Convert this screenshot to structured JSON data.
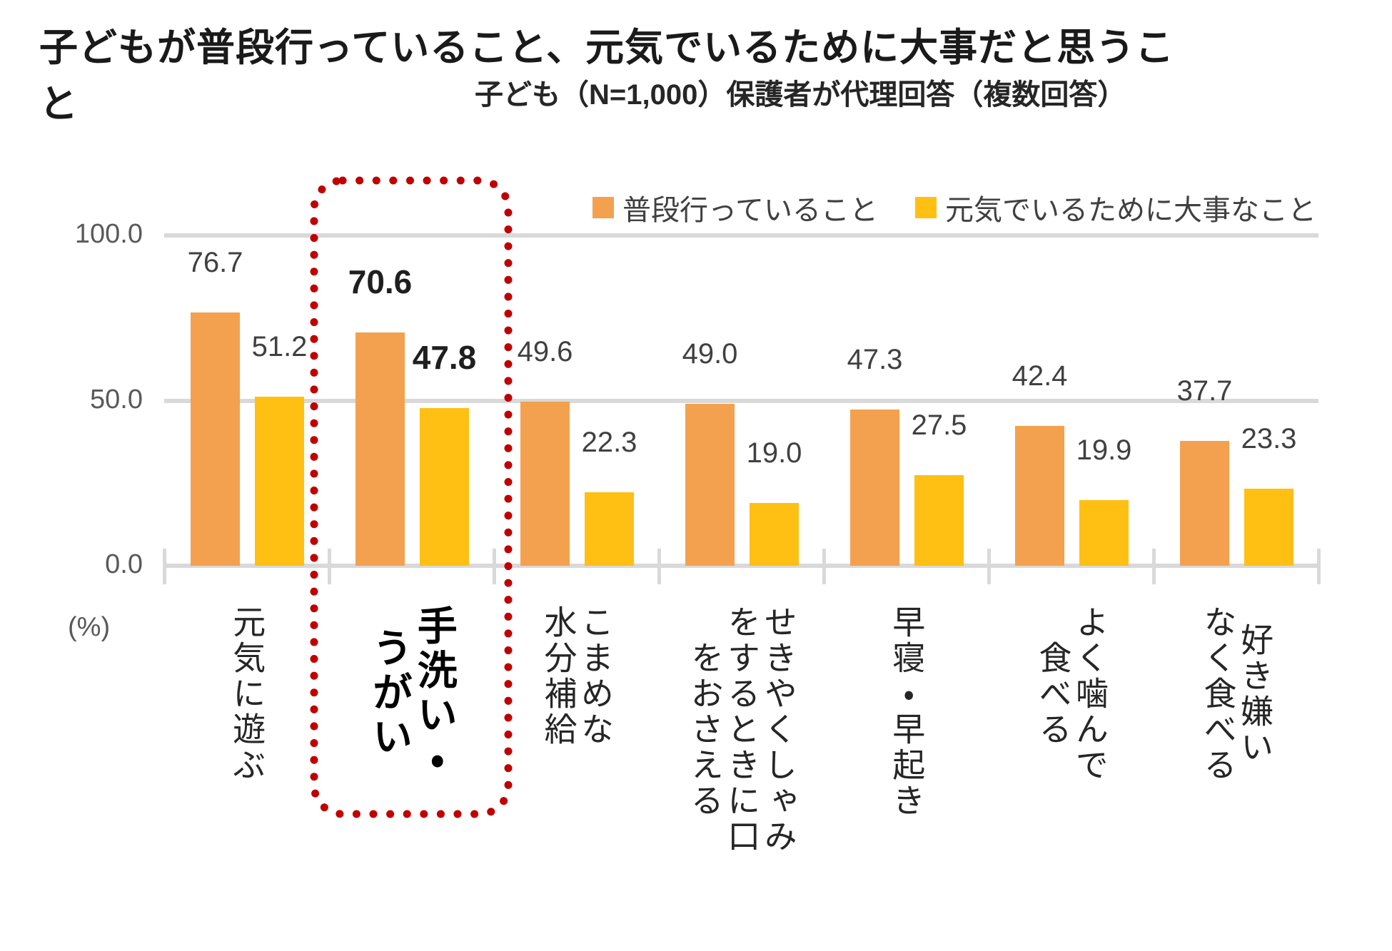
{
  "title": "子どもが普段行っていること、元気でいるために大事だと思うこと",
  "subtitle": "子ども（N=1,000）保護者が代理回答（複数回答）",
  "legend": {
    "items": [
      {
        "label": "普段行っていること",
        "color": "#F4A14F"
      },
      {
        "label": "元気でいるために大事なこと",
        "color": "#FFC013"
      }
    ]
  },
  "axis": {
    "unit": "(%)",
    "tick_labels": [
      "0.0",
      "50.0",
      "100.0"
    ]
  },
  "chart_data": {
    "type": "bar",
    "categories": [
      "元気に遊ぶ",
      "手洗い・\nうがい",
      "こまめな\n水分補給",
      "せきやくしゃみ\nをするときに口\nをおさえる",
      "早寝・早起き",
      "よく噛んで\n食べる",
      "好き嫌い\nなく食べる"
    ],
    "series": [
      {
        "name": "普段行っていること",
        "color": "#F4A14F",
        "values": [
          76.7,
          70.6,
          49.6,
          49.0,
          47.3,
          42.4,
          37.7
        ]
      },
      {
        "name": "元気でいるために大事なこと",
        "color": "#FFC013",
        "values": [
          51.2,
          47.8,
          22.3,
          19.0,
          27.5,
          19.9,
          23.3
        ]
      }
    ],
    "ylim": [
      0,
      100
    ],
    "yticks": [
      0,
      50,
      100
    ],
    "ylabel_unit": "(%)",
    "legend_position": "top-right",
    "grid": true,
    "highlight_index": 1,
    "highlight_color": "#C00000",
    "gridline_color": "#D9D9D9",
    "value_label_color": "#404040"
  }
}
